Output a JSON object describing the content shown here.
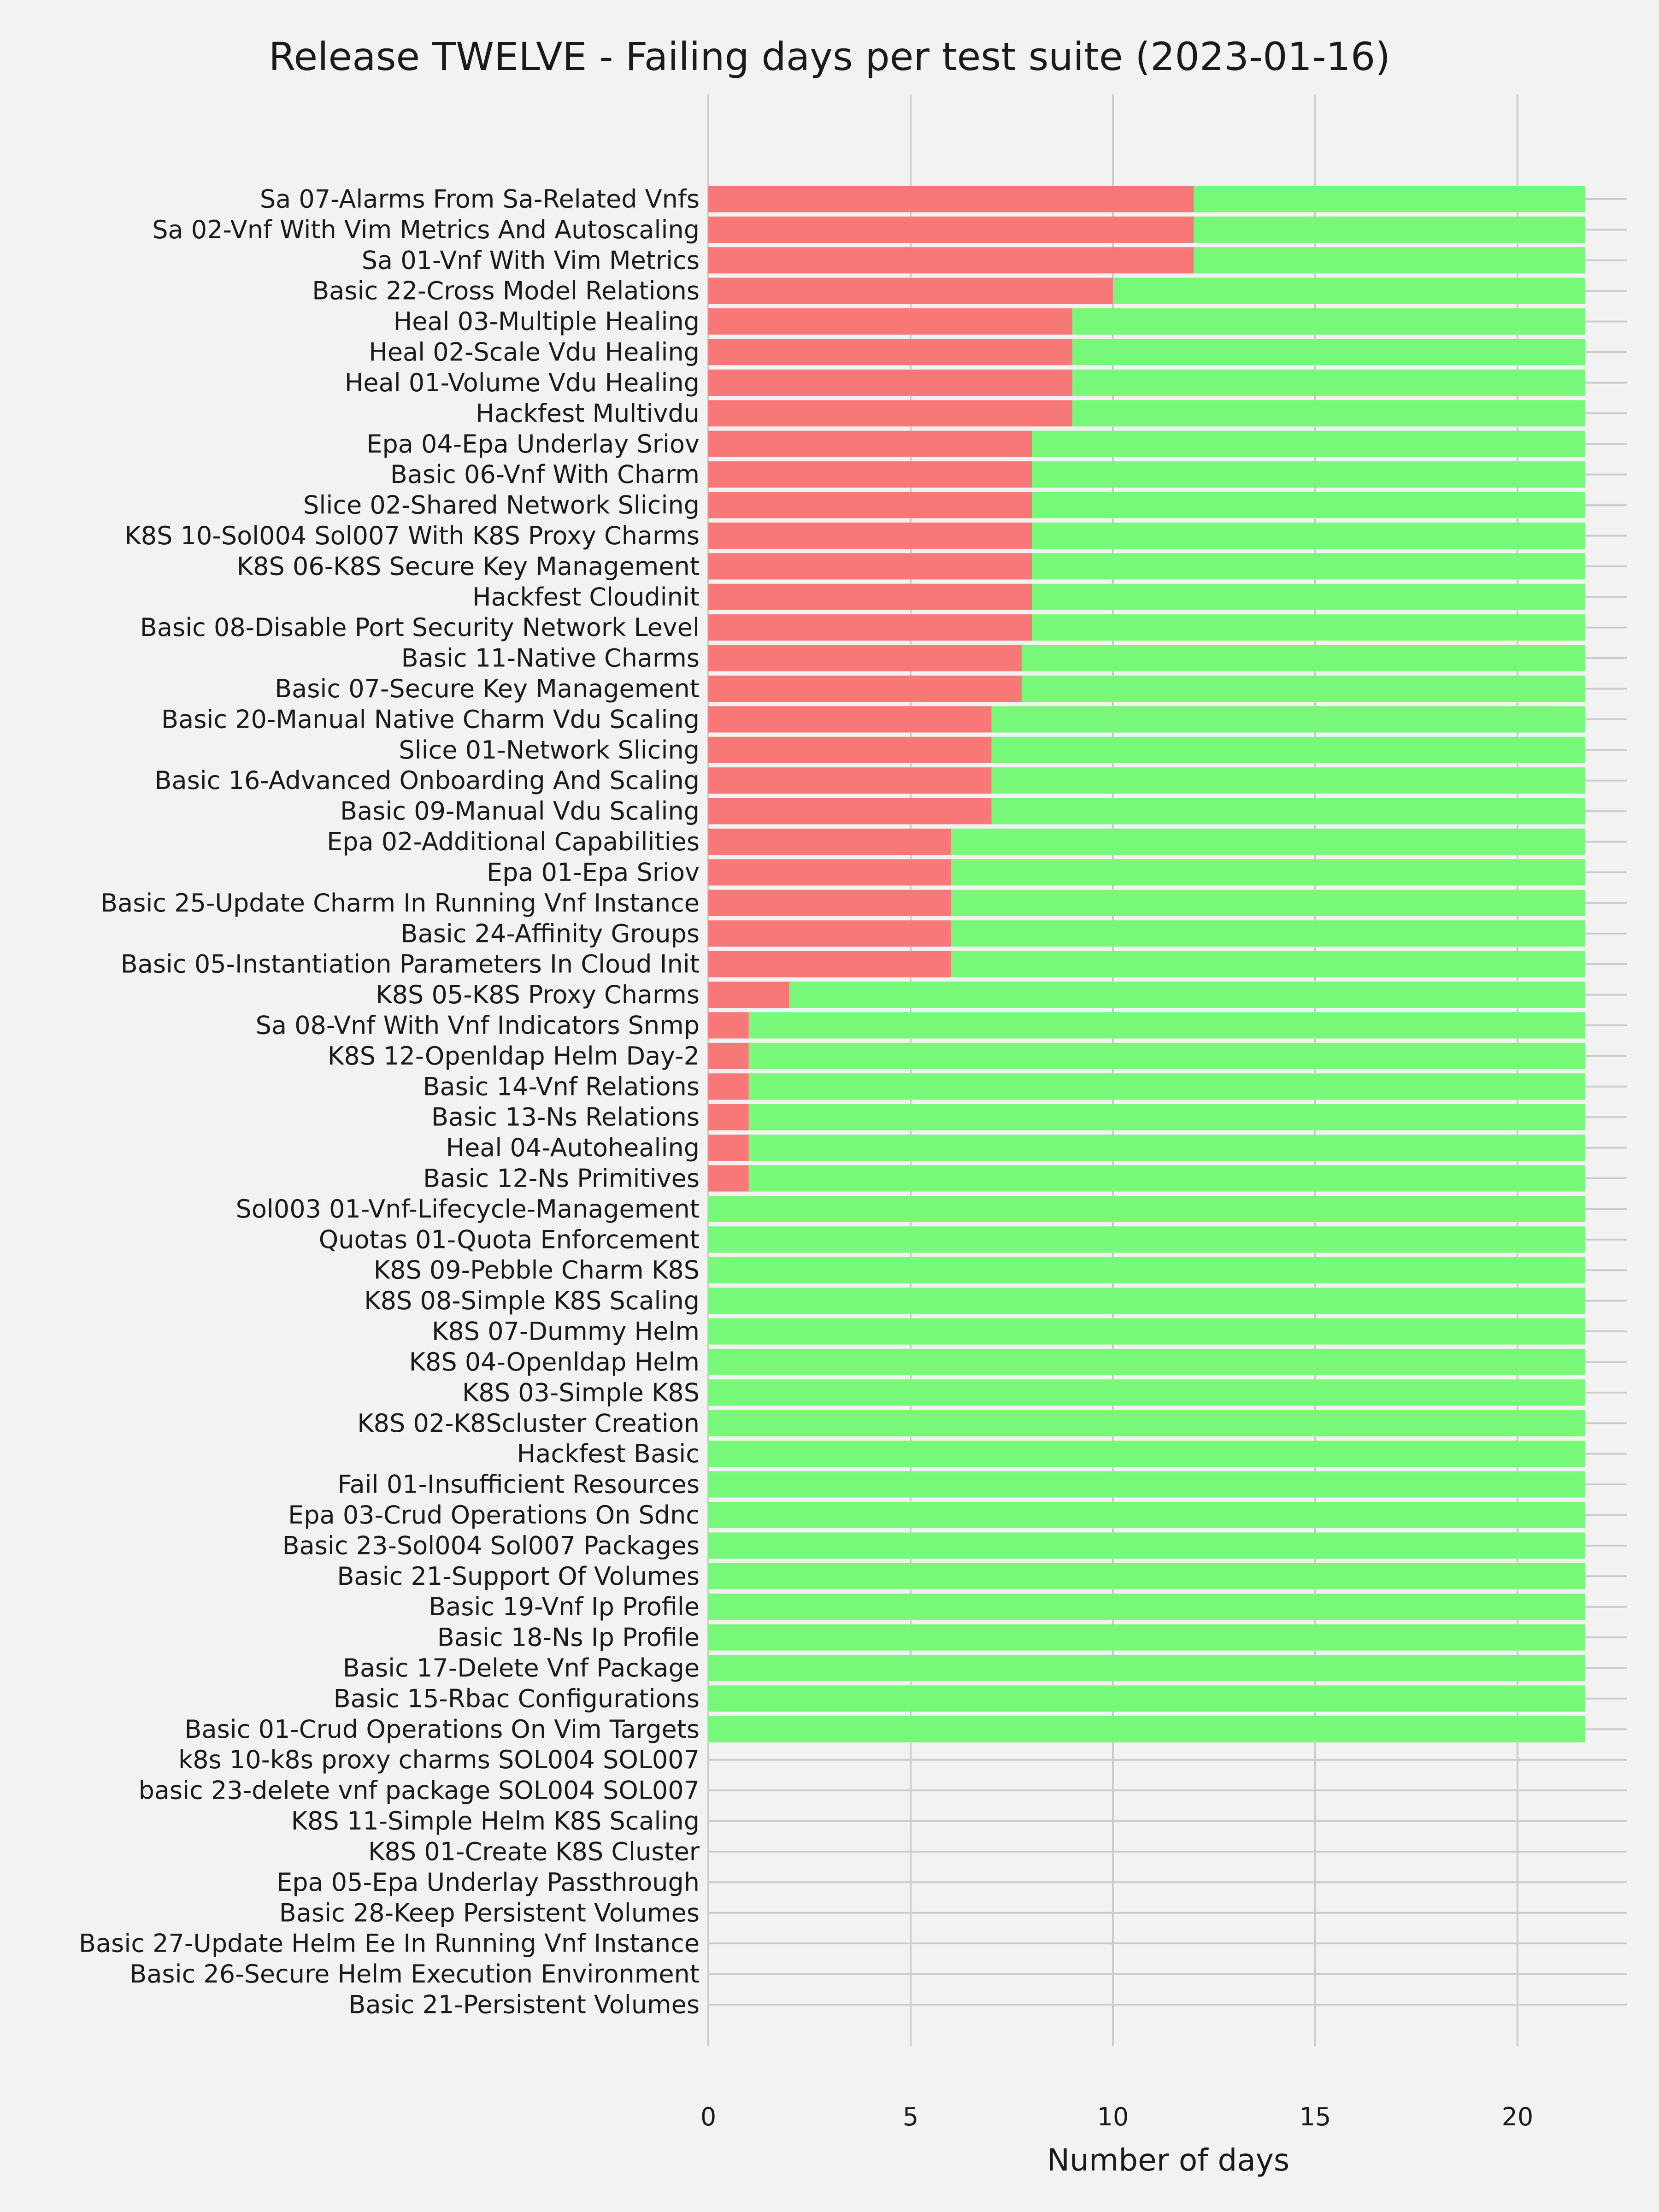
{
  "chart_data": {
    "type": "bar",
    "orientation": "horizontal",
    "stacked": true,
    "title": "Release TWELVE - Failing days per test suite (2023-01-16)",
    "xlabel": "Number of days",
    "ylabel": "",
    "xlim": [
      0,
      22.7
    ],
    "xticks": [
      0,
      5,
      10,
      15,
      20
    ],
    "grid": true,
    "legend": "none",
    "categories": [
      "Sa 07-Alarms From Sa-Related Vnfs",
      "Sa 02-Vnf With Vim Metrics And Autoscaling",
      "Sa 01-Vnf With Vim Metrics",
      "Basic 22-Cross Model Relations",
      "Heal 03-Multiple Healing",
      "Heal 02-Scale Vdu Healing",
      "Heal 01-Volume Vdu Healing",
      "Hackfest Multivdu",
      "Epa 04-Epa Underlay Sriov",
      "Basic 06-Vnf With Charm",
      "Slice 02-Shared Network Slicing",
      "K8S 10-Sol004 Sol007 With K8S Proxy Charms",
      "K8S 06-K8S Secure Key Management",
      "Hackfest Cloudinit",
      "Basic 08-Disable Port Security Network Level",
      "Basic 11-Native Charms",
      "Basic 07-Secure Key Management",
      "Basic 20-Manual Native Charm Vdu Scaling",
      "Slice 01-Network Slicing",
      "Basic 16-Advanced Onboarding And Scaling",
      "Basic 09-Manual Vdu Scaling",
      "Epa 02-Additional Capabilities",
      "Epa 01-Epa Sriov",
      "Basic 25-Update Charm In Running Vnf Instance",
      "Basic 24-Affinity Groups",
      "Basic 05-Instantiation Parameters In Cloud Init",
      "K8S 05-K8S Proxy Charms",
      "Sa 08-Vnf With Vnf Indicators Snmp",
      "K8S 12-Openldap Helm Day-2",
      "Basic 14-Vnf Relations",
      "Basic 13-Ns Relations",
      "Heal 04-Autohealing",
      "Basic 12-Ns Primitives",
      "Sol003 01-Vnf-Lifecycle-Management",
      "Quotas 01-Quota Enforcement",
      "K8S 09-Pebble Charm K8S",
      "K8S 08-Simple K8S Scaling",
      "K8S 07-Dummy Helm",
      "K8S 04-Openldap Helm",
      "K8S 03-Simple K8S",
      "K8S 02-K8Scluster Creation",
      "Hackfest Basic",
      "Fail 01-Insufficient Resources",
      "Epa 03-Crud Operations On Sdnc",
      "Basic 23-Sol004 Sol007 Packages",
      "Basic 21-Support Of Volumes",
      "Basic 19-Vnf Ip Profile",
      "Basic 18-Ns Ip Profile",
      "Basic 17-Delete Vnf Package",
      "Basic 15-Rbac Configurations",
      "Basic 01-Crud Operations On Vim Targets",
      "k8s 10-k8s proxy charms SOL004 SOL007",
      "basic 23-delete vnf package SOL004 SOL007",
      "K8S 11-Simple Helm K8S Scaling",
      "K8S 01-Create K8S Cluster",
      "Epa 05-Epa Underlay Passthrough",
      "Basic 28-Keep Persistent Volumes",
      "Basic 27-Update Helm Ee In Running Vnf Instance",
      "Basic 26-Secure Helm Execution Environment",
      "Basic 21-Persistent Volumes"
    ],
    "series": [
      {
        "values": [
          12,
          12,
          12,
          10,
          9,
          9,
          9,
          9,
          8,
          8,
          8,
          8,
          8,
          8,
          8,
          7.75,
          7.75,
          7,
          7,
          7,
          7,
          6,
          6,
          6,
          6,
          6,
          2,
          1,
          1,
          1,
          1,
          1,
          1,
          0,
          0,
          0,
          0,
          0,
          0,
          0,
          0,
          0,
          0,
          0,
          0,
          0,
          0,
          0,
          0,
          0,
          0,
          0,
          0,
          0,
          0,
          0,
          0,
          0,
          0,
          0
        ]
      },
      {
        "values": [
          9.67,
          9.67,
          9.67,
          11.67,
          12.67,
          12.67,
          12.67,
          12.67,
          13.67,
          13.67,
          13.67,
          13.67,
          13.67,
          13.67,
          13.67,
          13.92,
          13.92,
          14.67,
          14.67,
          14.67,
          14.67,
          15.67,
          15.67,
          15.67,
          15.67,
          15.67,
          19.67,
          20.67,
          20.67,
          20.67,
          20.67,
          20.67,
          20.67,
          21.67,
          21.67,
          21.67,
          21.67,
          21.67,
          21.67,
          21.67,
          21.67,
          21.67,
          21.67,
          21.67,
          21.67,
          21.67,
          21.67,
          21.67,
          21.67,
          21.67,
          21.67,
          0,
          0,
          0,
          0,
          0,
          0,
          0,
          0,
          0
        ]
      }
    ],
    "colors": {
      "fail": "#f87878",
      "pass": "#78f878",
      "grid": "#cbcbcb",
      "background": "#f2f2f2"
    }
  }
}
